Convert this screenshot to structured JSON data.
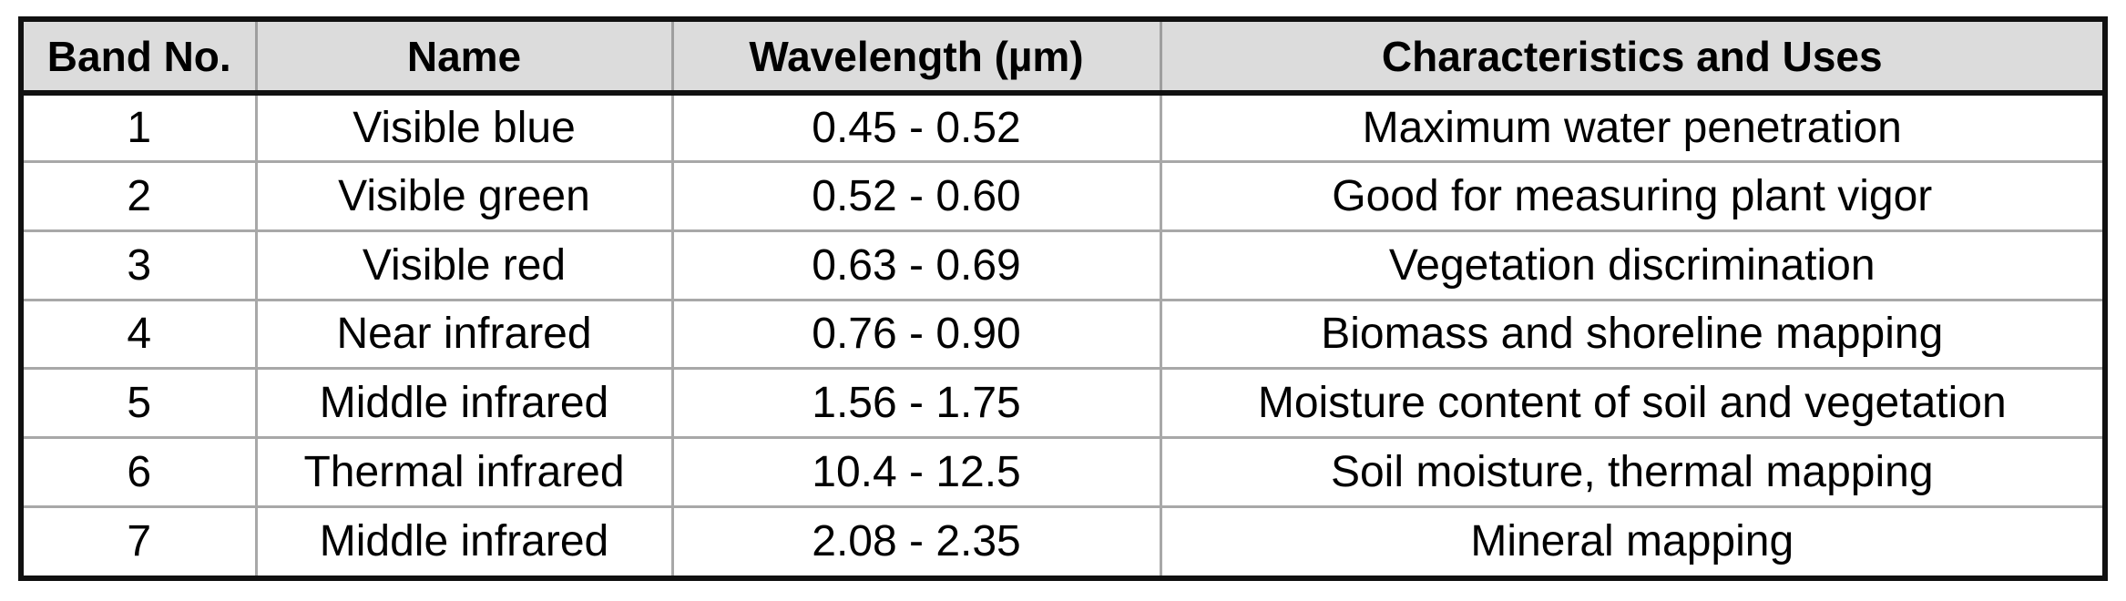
{
  "table": {
    "headers": [
      "Band No.",
      "Name",
      "Wavelength (µm)",
      "Characteristics and Uses"
    ],
    "rows": [
      [
        "1",
        "Visible blue",
        "0.45 - 0.52",
        "Maximum water penetration"
      ],
      [
        "2",
        "Visible green",
        "0.52 - 0.60",
        "Good for measuring plant vigor"
      ],
      [
        "3",
        "Visible red",
        "0.63 - 0.69",
        "Vegetation discrimination"
      ],
      [
        "4",
        "Near infrared",
        "0.76 - 0.90",
        "Biomass and shoreline mapping"
      ],
      [
        "5",
        "Middle infrared",
        "1.56 - 1.75",
        "Moisture content of soil and vegetation"
      ],
      [
        "6",
        "Thermal infrared",
        "10.4 - 12.5",
        "Soil moisture, thermal mapping"
      ],
      [
        "7",
        "Middle infrared",
        "2.08 - 2.35",
        "Mineral mapping"
      ]
    ]
  },
  "colors": {
    "header_background": "#dcdcdc",
    "outer_border": "#111111",
    "grid_line": "#a8a8a8"
  }
}
